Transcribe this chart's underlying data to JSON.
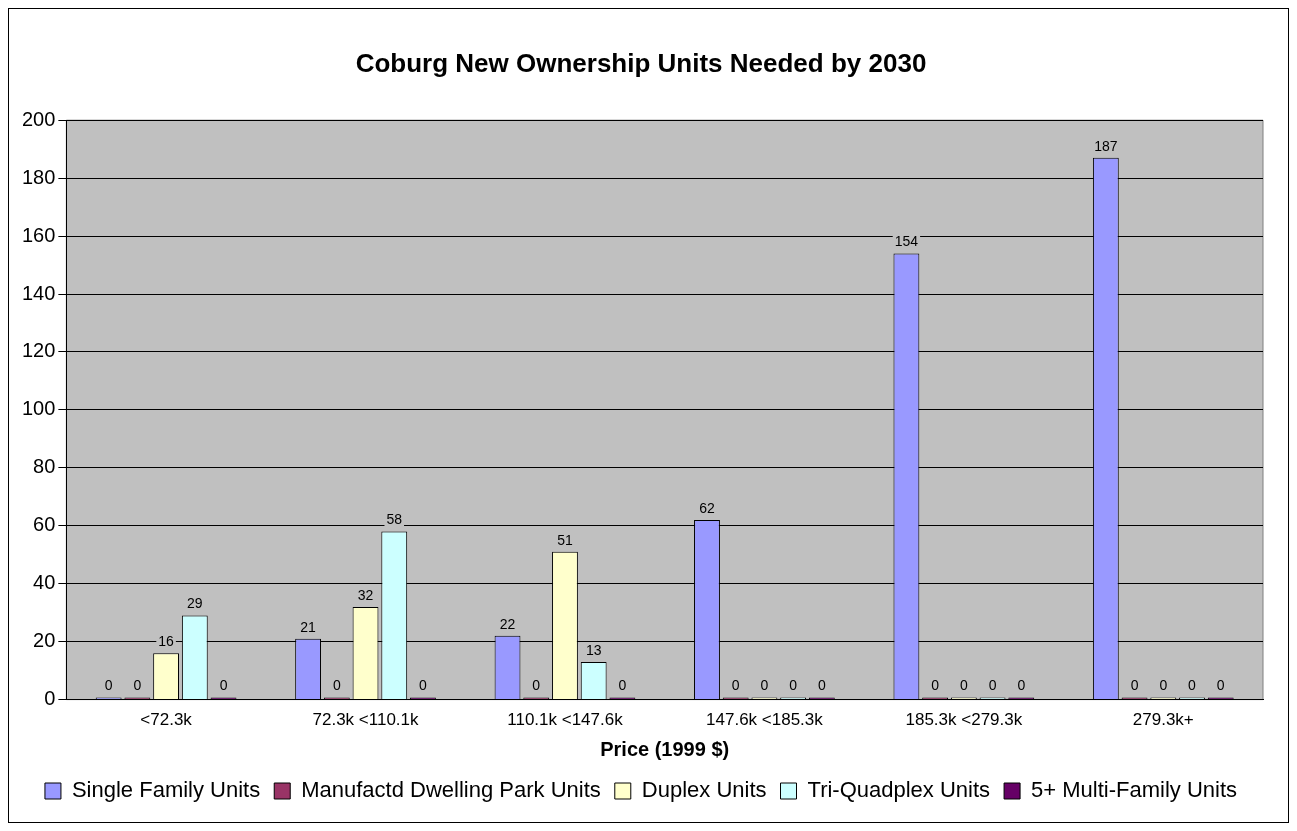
{
  "chart_data": {
    "type": "bar",
    "title": "Coburg New Ownership Units Needed by 2030",
    "xlabel": "Price (1999 $)",
    "categories": [
      "<72.3k",
      "72.3k <110.1k",
      "110.1k <147.6k",
      "147.6k <185.3k",
      "185.3k <279.3k",
      "279.3k+"
    ],
    "series": [
      {
        "name": "Single Family Units",
        "color": "#9999ff",
        "values": [
          0,
          21,
          22,
          62,
          154,
          187
        ]
      },
      {
        "name": "Manufactd Dwelling Park Units",
        "color": "#993366",
        "values": [
          0,
          0,
          0,
          0,
          0,
          0
        ]
      },
      {
        "name": "Duplex Units",
        "color": "#ffffcc",
        "values": [
          16,
          32,
          51,
          0,
          0,
          0
        ]
      },
      {
        "name": "Tri-Quadplex Units",
        "color": "#ccffff",
        "values": [
          29,
          58,
          13,
          0,
          0,
          0
        ]
      },
      {
        "name": "5+ Multi-Family Units",
        "color": "#660066",
        "values": [
          0,
          0,
          0,
          0,
          0,
          0
        ]
      }
    ],
    "ylim": [
      0,
      200
    ],
    "yticks": [
      0,
      20,
      40,
      60,
      80,
      100,
      120,
      140,
      160,
      180,
      200
    ],
    "grid": "y",
    "legend": "bottom",
    "data_labels": true
  }
}
